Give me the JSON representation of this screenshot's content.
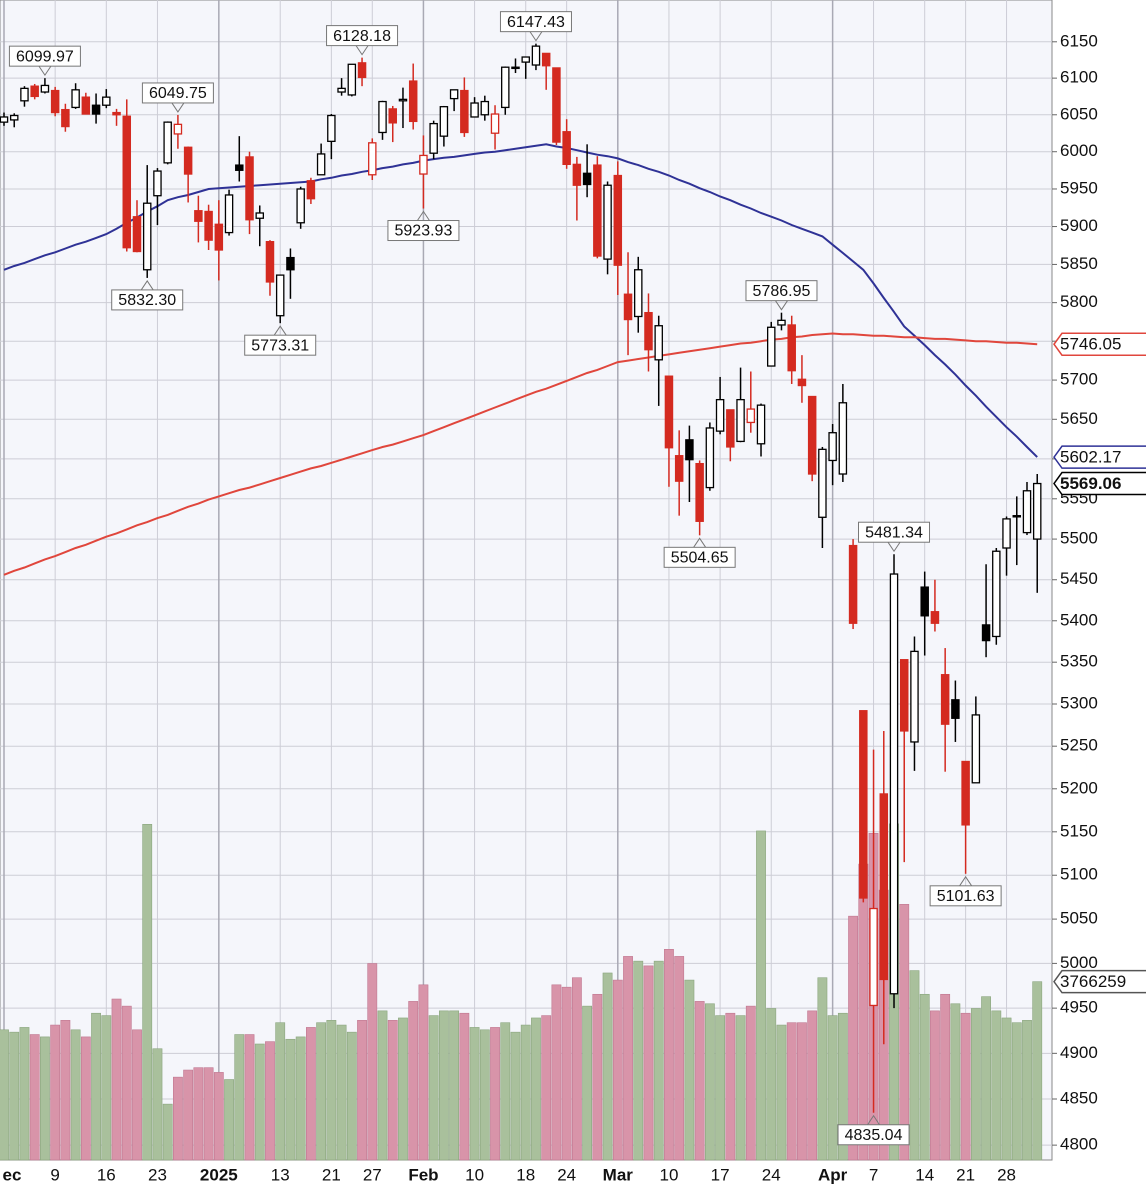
{
  "chart_data": {
    "type": "candlestick",
    "log_scale": true,
    "grid": true,
    "categories": [
      "ec",
      null,
      null,
      null,
      null,
      "9",
      null,
      null,
      null,
      null,
      "16",
      null,
      null,
      null,
      null,
      "23",
      null,
      null,
      null,
      null,
      null,
      "2025",
      null,
      null,
      null,
      null,
      null,
      "13",
      null,
      null,
      null,
      null,
      "21",
      null,
      null,
      null,
      "27",
      null,
      null,
      null,
      null,
      "Feb",
      null,
      null,
      null,
      null,
      "10",
      null,
      null,
      null,
      null,
      "18",
      null,
      null,
      null,
      "24",
      null,
      null,
      null,
      null,
      "Mar",
      null,
      null,
      null,
      null,
      "10",
      null,
      null,
      null,
      null,
      "17",
      null,
      null,
      null,
      null,
      "24",
      null,
      null,
      null,
      null,
      null,
      "Apr",
      null,
      null,
      null,
      "7",
      null,
      null,
      null,
      null,
      "14",
      null,
      null,
      null,
      "21",
      null,
      null,
      null,
      "28",
      null,
      null,
      null
    ],
    "open": [
      6040,
      6043,
      6069,
      6089,
      6081,
      6083,
      6057,
      6060,
      6074,
      6063,
      6063,
      6053,
      6048,
      5913,
      5843,
      5941,
      5985,
      6024,
      6006,
      5921,
      5920,
      5903,
      5892,
      5982,
      5993,
      5911,
      5880,
      5783,
      5859,
      5905,
      5961,
      5969,
      6014,
      6081,
      6077,
      6121,
      5969,
      6026,
      6058,
      6069,
      6096,
      5970,
      5998,
      6021,
      6072,
      6083,
      6047,
      6050,
      6025,
      6060,
      6115,
      6122,
      6118,
      6134,
      6114,
      6027,
      5983,
      5971,
      5982,
      5857,
      5968,
      5811,
      5782,
      5787,
      5726,
      5705,
      5604,
      5624,
      5594,
      5564,
      5635,
      5662,
      5622,
      5646,
      5619,
      5718,
      5771,
      5771,
      5701,
      5679,
      5527,
      5598,
      5581,
      5492,
      5292,
      4953,
      5194,
      4966,
      5353,
      5255,
      5441,
      5411,
      5335,
      5305,
      5232,
      5207,
      5395,
      5381,
      5489,
      5529,
      5508,
      5500
    ],
    "high": [
      6053,
      6052,
      6089,
      6092,
      6099.97,
      6088,
      6065,
      6093,
      6080,
      6079,
      6085,
      6058,
      6071,
      5935,
      5982,
      5978,
      6041,
      6049.75,
      6007,
      5941,
      5929,
      5935,
      5949,
      6021,
      6000,
      5928,
      5882,
      5836,
      5871,
      5953,
      5965,
      6011,
      6051,
      6100,
      6119,
      6128.18,
      6018,
      6069,
      6062,
      6087,
      6120,
      6022,
      6042,
      6062,
      6084,
      6101,
      6074,
      6076,
      6063,
      6116,
      6127,
      6129,
      6147.43,
      6134,
      6114,
      6044,
      5993,
      6010,
      5994,
      5960,
      5987,
      5866,
      5860,
      5812,
      5783,
      5705,
      5636,
      5642,
      5598,
      5646,
      5704,
      5662,
      5716,
      5711,
      5670,
      5775,
      5786.95,
      5783,
      5732,
      5679,
      5615,
      5644,
      5695,
      5500,
      5292,
      5246,
      5268,
      5481.34,
      5353,
      5381,
      5460,
      5450,
      5367,
      5328,
      5232,
      5309,
      5469,
      5489,
      5528,
      5553,
      5571,
      5581
    ],
    "low": [
      6035,
      6033,
      6061,
      6071,
      6079,
      6048,
      6027,
      6058,
      6051,
      6038,
      6059,
      6035,
      5867,
      5866,
      5832.3,
      5902,
      5983,
      6004,
      5932,
      5879,
      5869,
      5829,
      5888,
      5960,
      5890,
      5874,
      5809,
      5773.31,
      5805,
      5897,
      5930,
      5969,
      5990,
      6076,
      6075,
      6089,
      5962,
      6016,
      6013,
      6032,
      6030,
      5923.93,
      5990,
      6007,
      6055,
      6020,
      6047,
      6042,
      6003,
      6050,
      6107,
      6099,
      6111,
      6084,
      6009,
      5977,
      5908,
      5939,
      5858,
      5837,
      5810,
      5732,
      5761,
      5711,
      5667,
      5565,
      5529,
      5546,
      5504.65,
      5560,
      5631,
      5597,
      5621,
      5633,
      5603,
      5718,
      5764,
      5695,
      5671,
      5572,
      5489,
      5567,
      5571,
      5390,
      5069,
      4835.04,
      4910,
      4950,
      5115,
      5221,
      5358,
      5387,
      5220,
      5255,
      5101.63,
      5207,
      5356,
      5371,
      5455,
      5468,
      5505,
      5434
    ],
    "close": [
      6047,
      6049,
      6086,
      6075,
      6090,
      6053,
      6034,
      6084,
      6051,
      6051,
      6074,
      6050,
      5872,
      5867,
      5931,
      5974,
      6040,
      6037,
      5970,
      5907,
      5882,
      5869,
      5942,
      5975,
      5909,
      5918,
      5827,
      5836,
      5843,
      5950,
      5937,
      5997,
      6049,
      6086,
      6119,
      6101,
      6012,
      6068,
      6039,
      6071,
      6041,
      5995,
      6038,
      6061,
      6084,
      6026,
      6066,
      6068,
      6051,
      6115,
      6115,
      6129,
      6144,
      6117,
      6013,
      5983,
      5955,
      5956,
      5861,
      5955,
      5849,
      5778,
      5843,
      5739,
      5770,
      5614,
      5572,
      5599,
      5522,
      5639,
      5675,
      5615,
      5675,
      5663,
      5668,
      5768,
      5777,
      5712,
      5693,
      5581,
      5612,
      5633,
      5671,
      5397,
      5074,
      5062,
      4982,
      5457,
      5268,
      5363,
      5406,
      5397,
      5276,
      5283,
      5158,
      5287,
      5376,
      5485,
      5525,
      5529,
      5560,
      5569.06
    ],
    "volume": [
      2750000,
      2700000,
      2800000,
      2650000,
      2600000,
      2850000,
      2950000,
      2750000,
      2600000,
      3100000,
      3050000,
      3400000,
      3250000,
      2750000,
      7090000,
      2350000,
      1180000,
      1750000,
      1900000,
      1950000,
      1950000,
      1850000,
      1700000,
      2650000,
      2650000,
      2450000,
      2500000,
      2900000,
      2550000,
      2600000,
      2800000,
      2900000,
      2950000,
      2850000,
      2700000,
      2950000,
      4150000,
      3150000,
      2950000,
      3000000,
      3350000,
      3700000,
      3050000,
      3150000,
      3150000,
      3100000,
      2800000,
      2750000,
      2800000,
      2900000,
      2700000,
      2850000,
      3000000,
      3050000,
      3700000,
      3650000,
      3850000,
      3250000,
      3500000,
      3950000,
      3800000,
      4300000,
      4200000,
      4100000,
      4200000,
      4450000,
      4300000,
      3800000,
      3350000,
      3300000,
      3050000,
      3100000,
      3050000,
      3250000,
      6950000,
      3200000,
      2850000,
      2900000,
      2900000,
      3150000,
      3850000,
      3050000,
      3100000,
      5150000,
      6250000,
      6900000,
      5700000,
      7100000,
      5400000,
      4000000,
      3500000,
      3150000,
      3500000,
      3300000,
      3100000,
      3200000,
      3450000,
      3150000,
      3000000,
      2900000,
      2950000,
      3766259
    ],
    "series": [
      {
        "color": "#2f3296",
        "values": [
          5843,
          5848,
          5852,
          5857,
          5862,
          5866,
          5871,
          5876,
          5880,
          5885,
          5890,
          5897,
          5905,
          5912,
          5920,
          5927,
          5935,
          5939,
          5942,
          5946,
          5950,
          5951,
          5952,
          5953,
          5954,
          5955,
          5956,
          5957,
          5958,
          5959,
          5960,
          5963,
          5965,
          5968,
          5970,
          5973,
          5975,
          5978,
          5980,
          5983,
          5985,
          5988,
          5990,
          5992,
          5993,
          5995,
          5997,
          5999,
          6000,
          6002,
          6004,
          6006,
          6008,
          6010,
          6007,
          6005,
          6002,
          5999,
          5996,
          5994,
          5991,
          5986,
          5982,
          5977,
          5973,
          5968,
          5962,
          5957,
          5951,
          5946,
          5940,
          5935,
          5929,
          5924,
          5918,
          5913,
          5908,
          5902,
          5897,
          5892,
          5887,
          5876,
          5865,
          5854,
          5843,
          5825,
          5806,
          5788,
          5769,
          5757,
          5745,
          5732,
          5720,
          5707,
          5693,
          5680,
          5666,
          5653,
          5640,
          5628,
          5615,
          5602.17
        ]
      },
      {
        "color": "#e0463c",
        "values": [
          5456,
          5461,
          5465,
          5470,
          5475,
          5479,
          5484,
          5489,
          5493,
          5498,
          5503,
          5507,
          5512,
          5517,
          5521,
          5526,
          5530,
          5535,
          5540,
          5544,
          5549,
          5553,
          5557,
          5561,
          5564,
          5568,
          5572,
          5576,
          5580,
          5584,
          5588,
          5591,
          5595,
          5599,
          5603,
          5607,
          5611,
          5615,
          5618,
          5622,
          5626,
          5630,
          5635,
          5640,
          5645,
          5650,
          5655,
          5660,
          5665,
          5670,
          5675,
          5680,
          5685,
          5689,
          5694,
          5699,
          5704,
          5709,
          5713,
          5718,
          5723,
          5725,
          5727,
          5729,
          5731,
          5733,
          5735,
          5737,
          5739,
          5741,
          5743,
          5745,
          5747,
          5748,
          5750,
          5752,
          5753,
          5755,
          5756,
          5758,
          5759,
          5760,
          5759,
          5759,
          5758,
          5757,
          5757,
          5756,
          5755,
          5755,
          5754,
          5753,
          5753,
          5752,
          5751,
          5750,
          5750,
          5749,
          5748,
          5748,
          5747,
          5746.05
        ]
      }
    ],
    "up_color": "#000000",
    "down_color": "#d42a20",
    "volume_up_color": "#a9c09c",
    "volume_down_color": "#d894a9",
    "ylim": [
      4784,
      6208
    ],
    "yticks": [
      4800,
      4850,
      4900,
      4950,
      5000,
      5050,
      5100,
      5150,
      5200,
      5250,
      5300,
      5350,
      5400,
      5450,
      5500,
      5550,
      5600,
      5650,
      5700,
      5750,
      5800,
      5850,
      5900,
      5950,
      6000,
      6050,
      6100,
      6150
    ],
    "y2lim": [
      0,
      24500000
    ],
    "annotations": [
      6099.97,
      {
        "value": 5832.3,
        "label": "5832.30"
      },
      6049.75,
      5773.31,
      6128.18,
      5923.93,
      6147.43,
      5504.65,
      5786.95,
      4835.04,
      5481.34,
      5101.63
    ]
  }
}
